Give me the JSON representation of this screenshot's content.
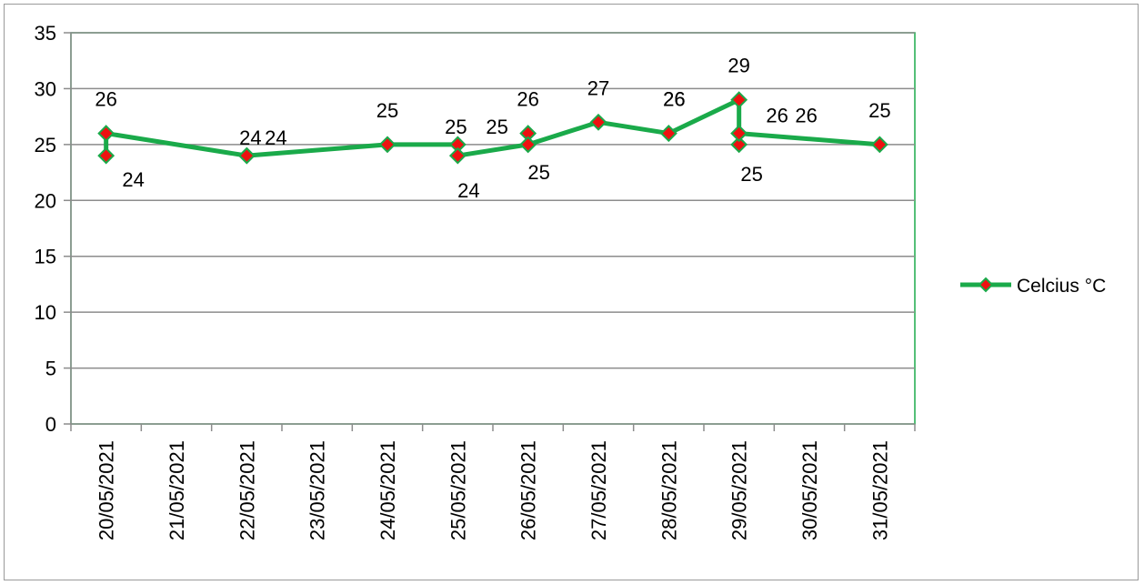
{
  "chart_data": {
    "type": "line",
    "title": "",
    "xlabel": "",
    "ylabel": "",
    "ylim": [
      0,
      35
    ],
    "yticks": [
      "0",
      "5",
      "10",
      "15",
      "20",
      "25",
      "30",
      "35"
    ],
    "categories": [
      "20/05/2021",
      "21/05/2021",
      "22/05/2021",
      "23/05/2021",
      "24/05/2021",
      "25/05/2021",
      "26/05/2021",
      "27/05/2021",
      "28/05/2021",
      "29/05/2021",
      "30/05/2021",
      "31/05/2021"
    ],
    "grid": true,
    "legend_position": "right",
    "series": [
      {
        "name": "Celcius °C",
        "line_color": "#1aaa4a",
        "marker_color": "#ee1111",
        "points": [
          {
            "category": "20/05/2021",
            "y": 24,
            "label": "24"
          },
          {
            "category": "20/05/2021",
            "y": 26,
            "label": "26"
          },
          {
            "category": "22/05/2021",
            "y": 24,
            "label": "24"
          },
          {
            "category": "22/05/2021",
            "y": 24,
            "label": "24"
          },
          {
            "category": "24/05/2021",
            "y": 25,
            "label": "25"
          },
          {
            "category": "25/05/2021",
            "y": 25,
            "label": "25"
          },
          {
            "category": "25/05/2021",
            "y": 24,
            "label": "24"
          },
          {
            "category": "26/05/2021",
            "y": 25,
            "label": "25"
          },
          {
            "category": "26/05/2021",
            "y": 26,
            "label": "26"
          },
          {
            "category": "26/05/2021",
            "y": 25,
            "label": "25"
          },
          {
            "category": "27/05/2021",
            "y": 27,
            "label": "27"
          },
          {
            "category": "28/05/2021",
            "y": 26,
            "label": "26"
          },
          {
            "category": "28/05/2021",
            "y": 26,
            "label": "26"
          },
          {
            "category": "29/05/2021",
            "y": 29,
            "label": "29"
          },
          {
            "category": "29/05/2021",
            "y": 25,
            "label": "25"
          },
          {
            "category": "29/05/2021",
            "y": 26,
            "label": "26"
          },
          {
            "category": "29/05/2021",
            "y": 26,
            "label": "26"
          },
          {
            "category": "31/05/2021",
            "y": 25,
            "label": "25"
          }
        ]
      }
    ]
  }
}
